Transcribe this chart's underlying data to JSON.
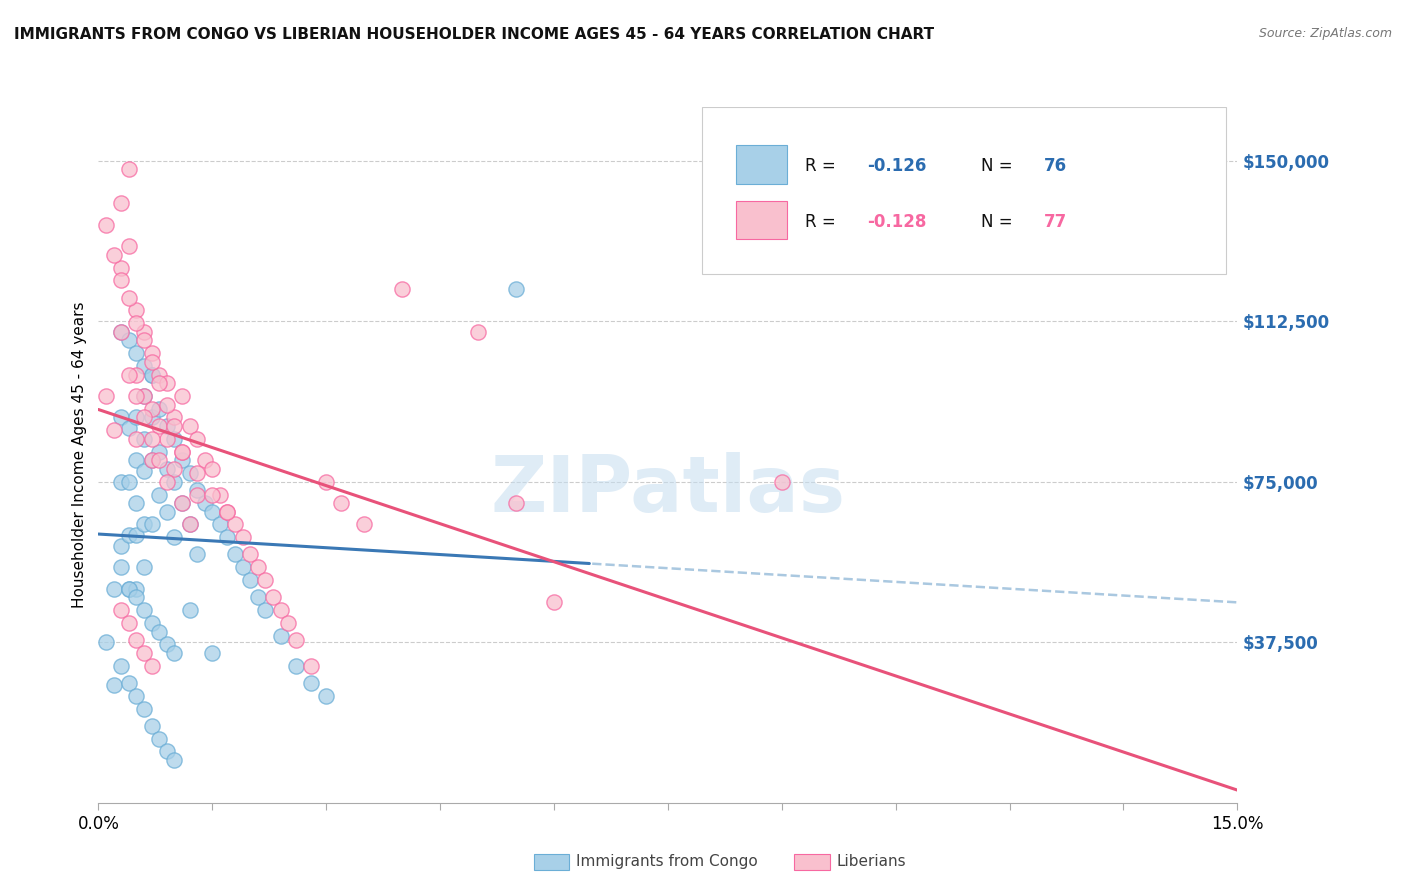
{
  "title": "IMMIGRANTS FROM CONGO VS LIBERIAN HOUSEHOLDER INCOME AGES 45 - 64 YEARS CORRELATION CHART",
  "source": "Source: ZipAtlas.com",
  "ylabel": "Householder Income Ages 45 - 64 years",
  "ylim": [
    0,
    162500
  ],
  "xlim": [
    0.0,
    0.15
  ],
  "yticks": [
    37500,
    75000,
    112500,
    150000
  ],
  "ytick_labels": [
    "$37,500",
    "$75,000",
    "$112,500",
    "$150,000"
  ],
  "color_congo": "#a8d0e8",
  "color_congo_edge": "#6baed6",
  "color_liberian": "#f9c0ce",
  "color_liberian_edge": "#f768a1",
  "color_congo_line": "#3a78b5",
  "color_liberian_line": "#e8527a",
  "color_congo_dash": "#aac8e0",
  "watermark": "ZIPatlas",
  "congo_x": [
    0.001,
    0.002,
    0.002,
    0.003,
    0.003,
    0.003,
    0.004,
    0.004,
    0.004,
    0.004,
    0.005,
    0.005,
    0.005,
    0.005,
    0.005,
    0.006,
    0.006,
    0.006,
    0.006,
    0.006,
    0.007,
    0.007,
    0.007,
    0.007,
    0.008,
    0.008,
    0.008,
    0.009,
    0.009,
    0.009,
    0.01,
    0.01,
    0.01,
    0.011,
    0.011,
    0.012,
    0.012,
    0.013,
    0.013,
    0.014,
    0.015,
    0.016,
    0.017,
    0.018,
    0.019,
    0.02,
    0.021,
    0.022,
    0.024,
    0.026,
    0.028,
    0.03,
    0.003,
    0.004,
    0.005,
    0.006,
    0.007,
    0.055,
    0.012,
    0.015,
    0.003,
    0.004,
    0.005,
    0.006,
    0.007,
    0.008,
    0.009,
    0.01,
    0.003,
    0.004,
    0.005,
    0.006,
    0.007,
    0.008,
    0.009,
    0.01
  ],
  "congo_y": [
    37500,
    50000,
    27500,
    90000,
    75000,
    60000,
    87500,
    75000,
    62500,
    50000,
    90000,
    80000,
    70000,
    62500,
    50000,
    95000,
    85000,
    77500,
    65000,
    55000,
    100000,
    90000,
    80000,
    65000,
    92000,
    82000,
    72000,
    88000,
    78000,
    68000,
    85000,
    75000,
    62000,
    80000,
    70000,
    77000,
    65000,
    73000,
    58000,
    70000,
    68000,
    65000,
    62000,
    58000,
    55000,
    52000,
    48000,
    45000,
    39000,
    32000,
    28000,
    25000,
    110000,
    108000,
    105000,
    102000,
    100000,
    120000,
    45000,
    35000,
    55000,
    50000,
    48000,
    45000,
    42000,
    40000,
    37000,
    35000,
    32000,
    28000,
    25000,
    22000,
    18000,
    15000,
    12000,
    10000
  ],
  "liberian_x": [
    0.001,
    0.002,
    0.003,
    0.003,
    0.004,
    0.004,
    0.005,
    0.005,
    0.005,
    0.006,
    0.006,
    0.007,
    0.007,
    0.007,
    0.008,
    0.008,
    0.009,
    0.009,
    0.01,
    0.01,
    0.011,
    0.011,
    0.012,
    0.013,
    0.013,
    0.014,
    0.015,
    0.016,
    0.017,
    0.018,
    0.019,
    0.02,
    0.021,
    0.022,
    0.023,
    0.024,
    0.025,
    0.026,
    0.028,
    0.003,
    0.004,
    0.005,
    0.006,
    0.007,
    0.008,
    0.009,
    0.011,
    0.012,
    0.03,
    0.032,
    0.035,
    0.001,
    0.002,
    0.003,
    0.004,
    0.005,
    0.006,
    0.007,
    0.008,
    0.009,
    0.01,
    0.011,
    0.013,
    0.015,
    0.017,
    0.09,
    0.003,
    0.004,
    0.005,
    0.006,
    0.007,
    0.04,
    0.05,
    0.055,
    0.06
  ],
  "liberian_y": [
    95000,
    87000,
    125000,
    140000,
    130000,
    148000,
    115000,
    100000,
    85000,
    110000,
    95000,
    105000,
    92000,
    80000,
    100000,
    88000,
    98000,
    85000,
    90000,
    78000,
    95000,
    82000,
    88000,
    85000,
    72000,
    80000,
    78000,
    72000,
    68000,
    65000,
    62000,
    58000,
    55000,
    52000,
    48000,
    45000,
    42000,
    38000,
    32000,
    110000,
    100000,
    95000,
    90000,
    85000,
    80000,
    75000,
    70000,
    65000,
    75000,
    70000,
    65000,
    135000,
    128000,
    122000,
    118000,
    112000,
    108000,
    103000,
    98000,
    93000,
    88000,
    82000,
    77000,
    72000,
    68000,
    75000,
    45000,
    42000,
    38000,
    35000,
    32000,
    120000,
    110000,
    70000,
    47000
  ]
}
